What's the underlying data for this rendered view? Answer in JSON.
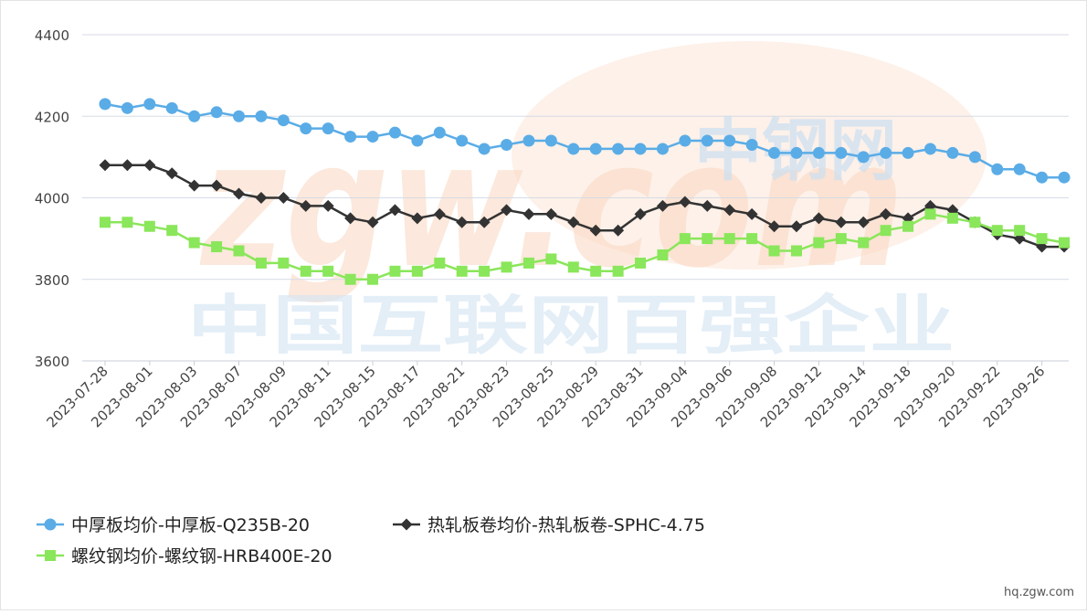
{
  "chart_data": {
    "type": "line",
    "title": "",
    "xlabel": "",
    "ylabel": "",
    "ylim": [
      3600,
      4400
    ],
    "yticks": [
      3600,
      3800,
      4000,
      4200,
      4400
    ],
    "grid": true,
    "legend_position": "bottom-left",
    "x": [
      "2023-07-28",
      "2023-07-31",
      "2023-08-01",
      "2023-08-02",
      "2023-08-03",
      "2023-08-04",
      "2023-08-07",
      "2023-08-08",
      "2023-08-09",
      "2023-08-10",
      "2023-08-11",
      "2023-08-14",
      "2023-08-15",
      "2023-08-16",
      "2023-08-17",
      "2023-08-18",
      "2023-08-21",
      "2023-08-22",
      "2023-08-23",
      "2023-08-24",
      "2023-08-25",
      "2023-08-28",
      "2023-08-29",
      "2023-08-30",
      "2023-08-31",
      "2023-09-01",
      "2023-09-04",
      "2023-09-05",
      "2023-09-06",
      "2023-09-07",
      "2023-09-08",
      "2023-09-11",
      "2023-09-12",
      "2023-09-13",
      "2023-09-14",
      "2023-09-15",
      "2023-09-18",
      "2023-09-19",
      "2023-09-20",
      "2023-09-21",
      "2023-09-22",
      "2023-09-25",
      "2023-09-26",
      "2023-09-27"
    ],
    "xtick_labels": [
      "2023-07-28",
      "2023-08-01",
      "2023-08-03",
      "2023-08-07",
      "2023-08-09",
      "2023-08-11",
      "2023-08-15",
      "2023-08-17",
      "2023-08-21",
      "2023-08-23",
      "2023-08-25",
      "2023-08-29",
      "2023-08-31",
      "2023-09-04",
      "2023-09-06",
      "2023-09-08",
      "2023-09-12",
      "2023-09-14",
      "2023-09-18",
      "2023-09-20",
      "2023-09-22",
      "2023-09-26"
    ],
    "series": [
      {
        "name": "中厚板均价-中厚板-Q235B-20",
        "color": "#5aace6",
        "marker": "circle",
        "values": [
          4230,
          4220,
          4230,
          4220,
          4200,
          4210,
          4200,
          4200,
          4190,
          4170,
          4170,
          4150,
          4150,
          4160,
          4140,
          4160,
          4140,
          4120,
          4130,
          4140,
          4140,
          4120,
          4120,
          4120,
          4120,
          4120,
          4140,
          4140,
          4140,
          4130,
          4110,
          4110,
          4110,
          4110,
          4100,
          4110,
          4110,
          4120,
          4110,
          4100,
          4070,
          4070,
          4050,
          4050
        ]
      },
      {
        "name": "热轧板卷均价-热轧板卷-SPHC-4.75",
        "color": "#333333",
        "marker": "diamond",
        "values": [
          4080,
          4080,
          4080,
          4060,
          4030,
          4030,
          4010,
          4000,
          4000,
          3980,
          3980,
          3950,
          3940,
          3970,
          3950,
          3960,
          3940,
          3940,
          3970,
          3960,
          3960,
          3940,
          3920,
          3920,
          3960,
          3980,
          3990,
          3980,
          3970,
          3960,
          3930,
          3930,
          3950,
          3940,
          3940,
          3960,
          3950,
          3980,
          3970,
          3940,
          3910,
          3900,
          3880,
          3880
        ]
      },
      {
        "name": "螺纹钢均价-螺纹钢-HRB400E-20",
        "color": "#8ae65a",
        "marker": "square",
        "values": [
          3940,
          3940,
          3930,
          3920,
          3890,
          3880,
          3870,
          3840,
          3840,
          3820,
          3820,
          3800,
          3800,
          3820,
          3820,
          3840,
          3820,
          3820,
          3830,
          3840,
          3850,
          3830,
          3820,
          3820,
          3840,
          3860,
          3900,
          3900,
          3900,
          3900,
          3870,
          3870,
          3890,
          3900,
          3890,
          3920,
          3930,
          3960,
          3950,
          3940,
          3920,
          3920,
          3900,
          3890
        ]
      }
    ]
  },
  "watermark": {
    "domain": "zgw.com",
    "brand": "中钢网",
    "slogan": "中国互联网百强企业"
  },
  "source": "hq.zgw.com"
}
